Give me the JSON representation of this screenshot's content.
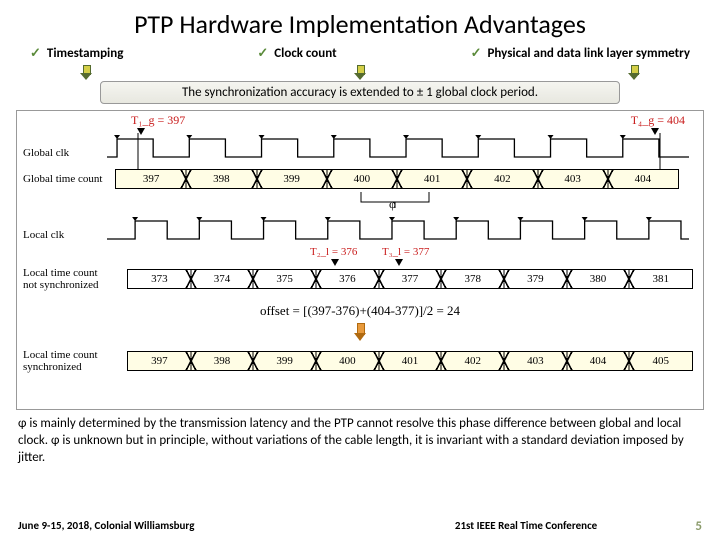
{
  "title": "PTP Hardware Implementation Advantages",
  "bullets": [
    "Timestamping",
    "Clock count",
    "Physical and data link layer symmetry"
  ],
  "sync_text": "The synchronization accuracy is extended to ± 1 global clock period.",
  "timestamps": {
    "t1": "T₁_g = 397",
    "t4": "T₄_g = 404",
    "t2": "T₂_l = 376",
    "t3": "T₃_l = 377"
  },
  "labels": {
    "global_clk": "Global clk",
    "global_count": "Global time count",
    "local_clk": "Local clk",
    "local_not_sync": "Local time count not synchronized",
    "local_sync": "Local time count synchronized",
    "phi": "φ"
  },
  "global_count": [
    "397",
    "398",
    "399",
    "400",
    "401",
    "402",
    "403",
    "404"
  ],
  "local_not_sync": [
    "373",
    "374",
    "375",
    "376",
    "377",
    "378",
    "379",
    "380",
    "381"
  ],
  "local_sync": [
    "397",
    "398",
    "399",
    "400",
    "401",
    "402",
    "403",
    "404",
    "405"
  ],
  "offset_formula": "offset = [(397-376)+(404-377)]/2 = 24",
  "paragraph": "φ is mainly determined by the transmission latency and the PTP cannot resolve this phase difference between global and local clock. φ is unknown but in principle, without variations of the cable length, it is invariant with a standard deviation imposed by jitter.",
  "footer": {
    "left": "June 9-15, 2018, Colonial Williamsburg",
    "mid": "21st IEEE Real Time Conference",
    "num": "5"
  },
  "colors": {
    "track_yellow": "#fffde5",
    "red": "#c91d1d",
    "green_check": "#5a8a3a"
  }
}
